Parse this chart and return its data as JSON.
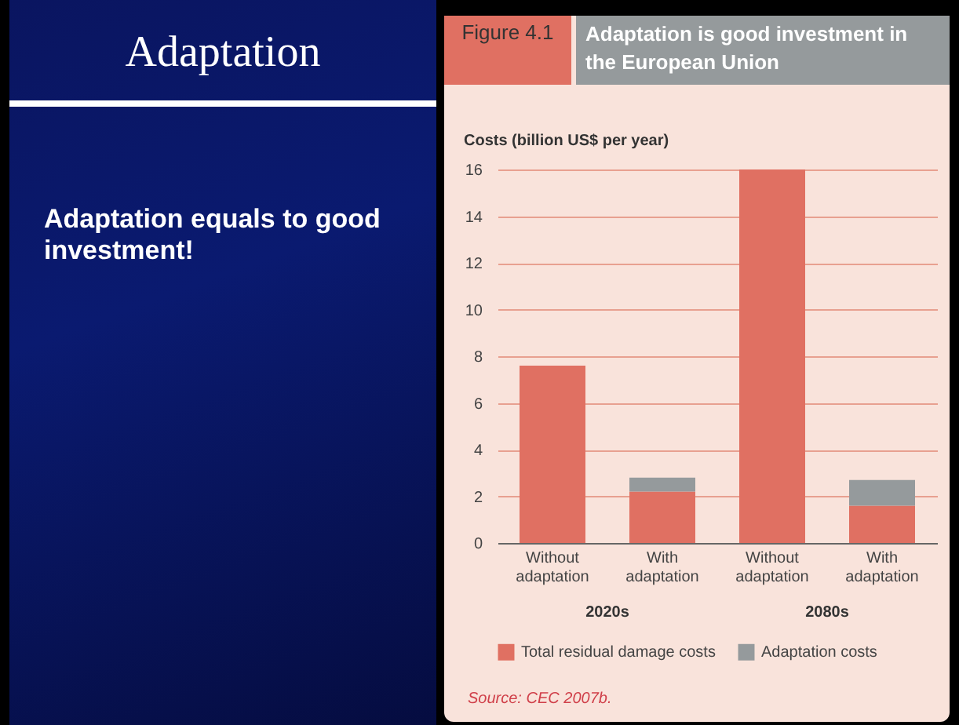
{
  "chart_data": {
    "type": "bar",
    "title": "Adaptation is good investment in the European Union",
    "ylabel": "Costs (billion US$ per year)",
    "annotations": [
      "Adaptation",
      "Adaptation equals to good investment!",
      "Figure 4.1",
      "2020s",
      "2080s",
      "Source: CEC 2007b."
    ],
    "categories": [
      "Without adaptation",
      "With adaptation",
      "Without adaptation",
      "With adaptation"
    ],
    "stacked": true,
    "series": [
      {
        "name": "Total residual damage costs",
        "color": "#e07062",
        "values": [
          7.6,
          2.2,
          16,
          1.6
        ]
      },
      {
        "name": "Adaptation costs",
        "color": "#959a9c",
        "values": [
          null,
          0.6,
          null,
          1.1
        ]
      }
    ],
    "ylim": [
      0,
      16
    ],
    "yticks": [
      0,
      2,
      4,
      6,
      8,
      10,
      12,
      14,
      16
    ],
    "grid": "y",
    "legend": "bottom"
  }
}
